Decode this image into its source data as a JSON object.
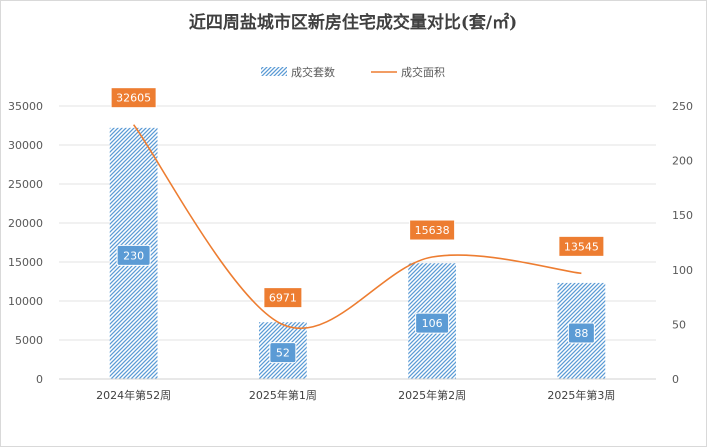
{
  "chart_data": {
    "type": "bar+line",
    "title": "近四周盐城市区新房住宅成交量对比(套/㎡)",
    "categories": [
      "2024年第52周",
      "2025年第1周",
      "2025年第2周",
      "2025年第3周"
    ],
    "series": [
      {
        "name": "成交套数",
        "type": "bar",
        "axis": "right",
        "values": [
          230,
          52,
          106,
          88
        ],
        "labels": [
          "230",
          "52",
          "106",
          "88"
        ],
        "color": "#5b9bd5"
      },
      {
        "name": "成交面积",
        "type": "line",
        "axis": "left",
        "values": [
          32605,
          6971,
          15638,
          13545
        ],
        "labels": [
          "32605",
          "6971",
          "15638",
          "13545"
        ],
        "color": "#ed7d31"
      }
    ],
    "y_left": {
      "min": 0,
      "max": 35000,
      "ticks": [
        "0",
        "5000",
        "10000",
        "15000",
        "20000",
        "25000",
        "30000",
        "35000"
      ]
    },
    "y_right": {
      "min": 0,
      "max": 250,
      "ticks": [
        "0",
        "50",
        "100",
        "150",
        "200",
        "250"
      ]
    },
    "legend_position": "top",
    "grid": true
  }
}
